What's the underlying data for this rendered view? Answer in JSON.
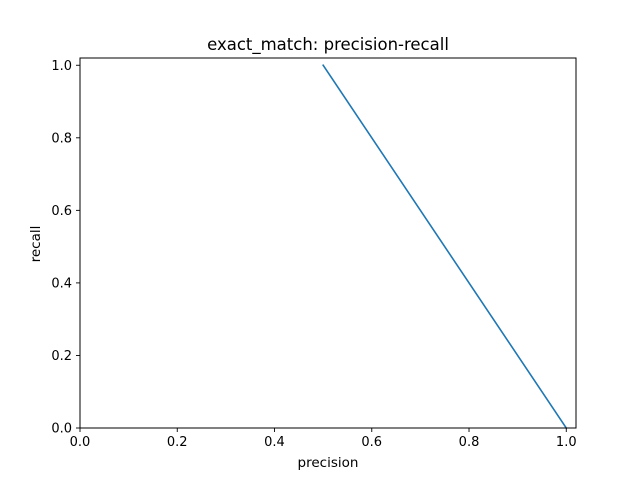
{
  "chart_data": {
    "type": "line",
    "title": "exact_match: precision-recall",
    "xlabel": "precision",
    "ylabel": "recall",
    "xlim": [
      0.0,
      1.02
    ],
    "ylim": [
      0.0,
      1.02
    ],
    "x_ticks": [
      0.0,
      0.2,
      0.4,
      0.6,
      0.8,
      1.0
    ],
    "x_tick_labels": [
      "0.0",
      "0.2",
      "0.4",
      "0.6",
      "0.8",
      "1.0"
    ],
    "y_ticks": [
      0.0,
      0.2,
      0.4,
      0.6,
      0.8,
      1.0
    ],
    "y_tick_labels": [
      "0.0",
      "0.2",
      "0.4",
      "0.6",
      "0.8",
      "1.0"
    ],
    "grid": false,
    "series": [
      {
        "color": "#1f77b4",
        "x": [
          0.5,
          1.0
        ],
        "y": [
          1.0,
          0.0
        ]
      }
    ]
  }
}
